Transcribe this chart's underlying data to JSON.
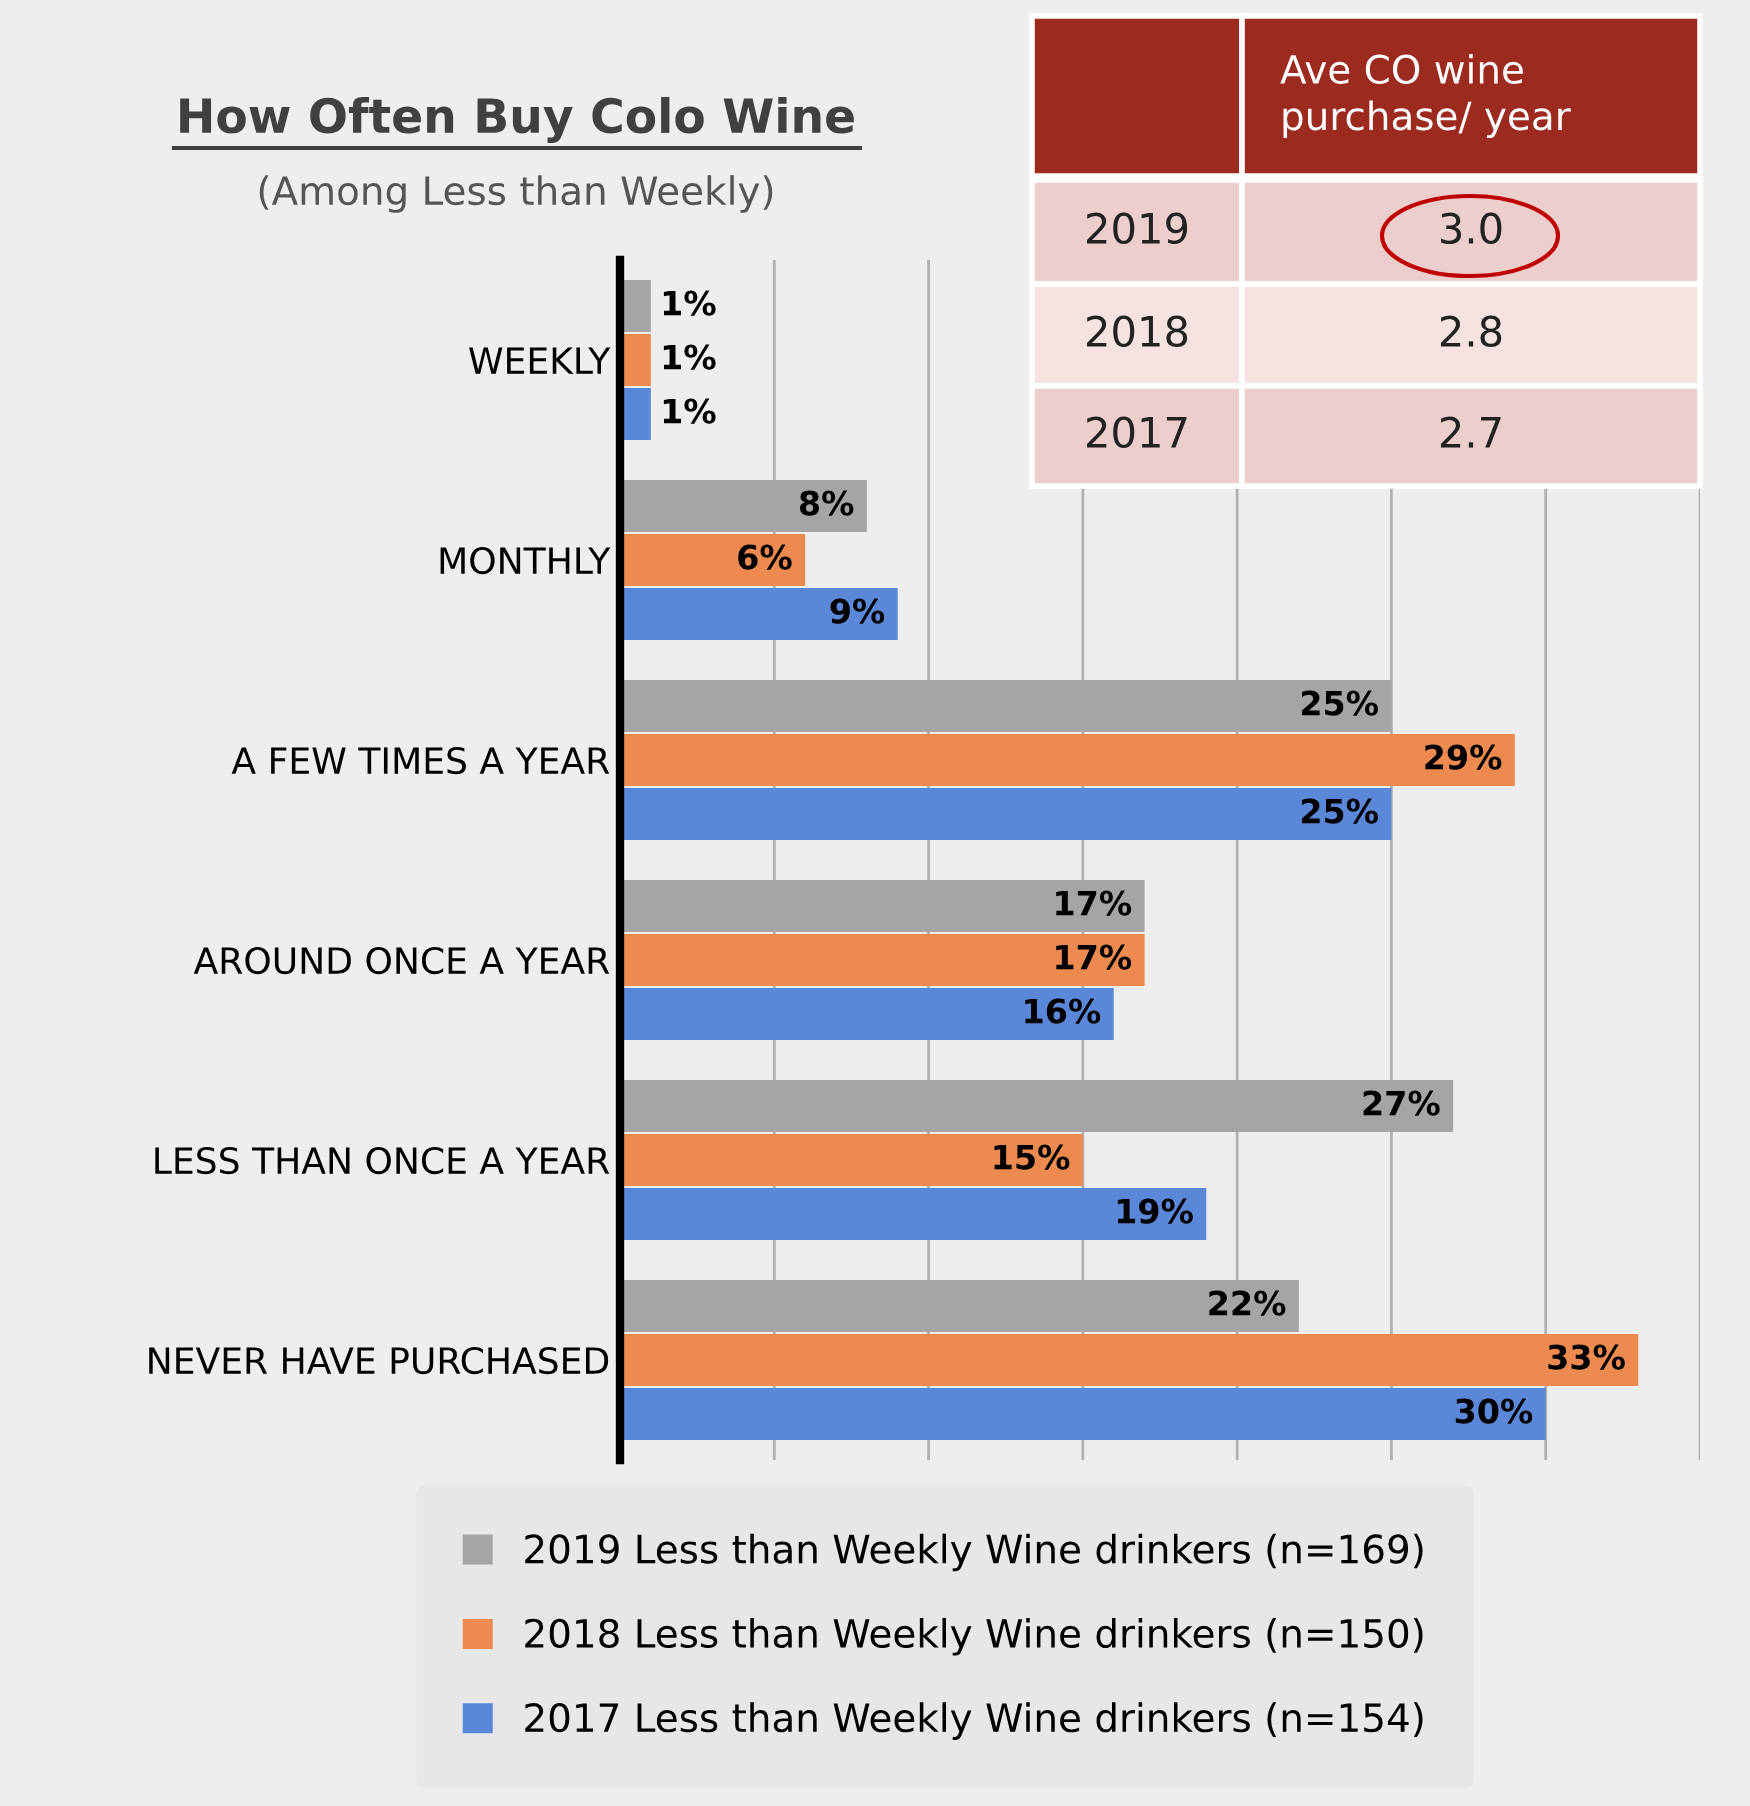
{
  "chart_data": {
    "type": "bar",
    "orientation": "horizontal",
    "title": "How Often Buy Colo Wine",
    "subtitle": "(Among Less than Weekly)",
    "categories": [
      "WEEKLY",
      "MONTHLY",
      "A FEW TIMES A YEAR",
      "AROUND ONCE A YEAR",
      "LESS THAN ONCE A YEAR",
      "NEVER HAVE PURCHASED"
    ],
    "series": [
      {
        "name": "2019 Less than Weekly Wine drinkers (n=169)",
        "color": "#a5a5a5",
        "values": [
          1,
          8,
          25,
          17,
          27,
          22
        ],
        "value_labels": [
          "1%",
          "8%",
          "25%",
          "17%",
          "27%",
          "22%"
        ]
      },
      {
        "name": "2018 Less than Weekly Wine drinkers (n=150)",
        "color": "#ed8a4f",
        "values": [
          1,
          6,
          29,
          17,
          15,
          33
        ],
        "value_labels": [
          "1%",
          "6%",
          "29%",
          "17%",
          "15%",
          "33%"
        ]
      },
      {
        "name": "2017 Less than Weekly Wine drinkers (n=154)",
        "color": "#5b87d8",
        "values": [
          1,
          9,
          25,
          16,
          19,
          30
        ],
        "value_labels": [
          "1%",
          "9%",
          "25%",
          "16%",
          "19%",
          "30%"
        ]
      }
    ],
    "xlim": [
      0,
      35
    ],
    "xticks": [
      {
        "value": 0,
        "label": null
      },
      {
        "value": 5,
        "label": null
      },
      {
        "value": 10,
        "label": null
      },
      {
        "value": 15,
        "label": null
      },
      {
        "value": 20,
        "label": null
      },
      {
        "value": 25,
        "label": null
      },
      {
        "value": 30,
        "label": null
      },
      {
        "value": 35,
        "label": null
      }
    ],
    "grid": "x",
    "legend": "bottom",
    "tick_labels": "y",
    "annotations": [
      "Ave CO wine purchase/ year",
      "2019",
      "3.0",
      "2018",
      "2.8",
      "2017",
      "2.7"
    ]
  }
}
